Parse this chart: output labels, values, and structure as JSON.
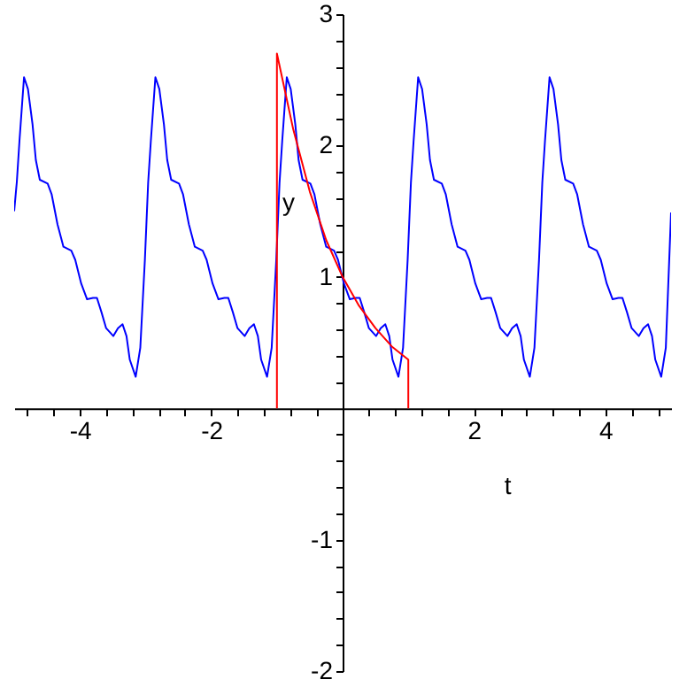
{
  "chart_data": {
    "type": "line",
    "xlabel": "t",
    "ylabel": "y",
    "x": [
      -5,
      -4.96,
      -4.92,
      -4.85,
      -4.79,
      -4.72,
      -4.67,
      -4.61,
      -4.49,
      -4.43,
      -4.34,
      -4.25,
      -4.13,
      -4.07,
      -3.98,
      -3.89,
      -3.8,
      -3.74,
      -3.67,
      -3.6,
      -3.49,
      -3.42,
      -3.35,
      -3.29,
      -3.24,
      -3.15,
      -3.08,
      -3.01,
      -2.96,
      -2.92,
      -2.85,
      -2.79,
      -2.72,
      -2.67,
      -2.61,
      -2.49,
      -2.43,
      -2.34,
      -2.25,
      -2.13,
      -2.07,
      -1.98,
      -1.89,
      -1.8,
      -1.74,
      -1.67,
      -1.6,
      -1.49,
      -1.42,
      -1.35,
      -1.29,
      -1.24,
      -1.15,
      -1.08,
      -1.01,
      -0.96,
      -0.92,
      -0.85,
      -0.79,
      -0.72,
      -0.67,
      -0.61,
      -0.49,
      -0.43,
      -0.34,
      -0.25,
      -0.13,
      -0.07,
      0.02,
      0.11,
      0.2,
      0.26,
      0.33,
      0.4,
      0.51,
      0.58,
      0.65,
      0.71,
      0.76,
      0.85,
      0.92,
      0.99,
      1.04,
      1.08,
      1.15,
      1.21,
      1.28,
      1.33,
      1.39,
      1.51,
      1.57,
      1.66,
      1.75,
      1.87,
      1.93,
      2.02,
      2.11,
      2.2,
      2.26,
      2.33,
      2.4,
      2.51,
      2.58,
      2.65,
      2.71,
      2.76,
      2.85,
      2.92,
      2.99,
      3.04,
      3.08,
      3.15,
      3.21,
      3.28,
      3.33,
      3.39,
      3.51,
      3.57,
      3.66,
      3.75,
      3.87,
      3.93,
      4.02,
      4.11,
      4.2,
      4.26,
      4.33,
      4.4,
      4.51,
      4.58,
      4.65,
      4.71,
      4.76,
      4.85,
      4.92,
      5
    ],
    "series": [
      {
        "color": "#0000ff",
        "values": [
          1.5,
          1.72,
          2.03,
          2.52,
          2.43,
          2.16,
          1.89,
          1.74,
          1.71,
          1.63,
          1.4,
          1.23,
          1.2,
          1.13,
          0.95,
          0.83,
          0.84,
          0.84,
          0.73,
          0.61,
          0.55,
          0.61,
          0.64,
          0.55,
          0.37,
          0.24,
          0.46,
          1.13,
          1.72,
          2.03,
          2.52,
          2.43,
          2.16,
          1.89,
          1.74,
          1.71,
          1.63,
          1.4,
          1.23,
          1.2,
          1.13,
          0.95,
          0.83,
          0.84,
          0.84,
          0.73,
          0.61,
          0.55,
          0.61,
          0.64,
          0.55,
          0.37,
          0.24,
          0.46,
          1.13,
          1.72,
          2.03,
          2.52,
          2.43,
          2.16,
          1.89,
          1.74,
          1.71,
          1.63,
          1.4,
          1.23,
          1.2,
          1.13,
          0.95,
          0.83,
          0.84,
          0.84,
          0.73,
          0.61,
          0.55,
          0.61,
          0.64,
          0.55,
          0.37,
          0.24,
          0.46,
          1.13,
          1.72,
          2.03,
          2.52,
          2.43,
          2.16,
          1.89,
          1.74,
          1.71,
          1.63,
          1.4,
          1.23,
          1.2,
          1.13,
          0.95,
          0.83,
          0.84,
          0.84,
          0.73,
          0.61,
          0.55,
          0.61,
          0.64,
          0.55,
          0.37,
          0.24,
          0.46,
          1.13,
          1.72,
          2.03,
          2.52,
          2.43,
          2.16,
          1.89,
          1.74,
          1.71,
          1.63,
          1.4,
          1.23,
          1.2,
          1.13,
          0.95,
          0.83,
          0.84,
          0.84,
          0.73,
          0.61,
          0.55,
          0.61,
          0.64,
          0.55,
          0.37,
          0.24,
          0.46,
          1.49
        ]
      },
      {
        "color": "#ff0000",
        "x": [
          -1,
          -1,
          -0.75,
          -0.5,
          -0.25,
          0,
          0.25,
          0.5,
          0.75,
          1,
          1
        ],
        "values": [
          0,
          2.7,
          2.12,
          1.65,
          1.28,
          1,
          0.78,
          0.61,
          0.47,
          0.37,
          0
        ]
      }
    ],
    "xlim": [
      -5,
      5
    ],
    "xticks": [
      {
        "value": -4.8,
        "label": null
      },
      {
        "value": -4.4,
        "label": null
      },
      -4,
      {
        "value": -3.6,
        "label": null
      },
      {
        "value": -3.2,
        "label": null
      },
      {
        "value": -2.8,
        "label": null
      },
      {
        "value": -2.4,
        "label": null
      },
      -2,
      {
        "value": -1.6,
        "label": null
      },
      {
        "value": -1.2,
        "label": null
      },
      {
        "value": -0.8,
        "label": null
      },
      {
        "value": -0.4,
        "label": null
      },
      {
        "value": 0.4,
        "label": null
      },
      {
        "value": 0.8,
        "label": null
      },
      {
        "value": 1.2,
        "label": null
      },
      {
        "value": 1.6,
        "label": null
      },
      2,
      {
        "value": 2.4,
        "label": null
      },
      {
        "value": 2.8,
        "label": null
      },
      {
        "value": 3.2,
        "label": null
      },
      {
        "value": 3.6,
        "label": null
      },
      4,
      {
        "value": 4.4,
        "label": null
      },
      {
        "value": 4.8,
        "label": null
      }
    ],
    "ylim": [
      -2,
      3
    ],
    "yticks": [
      -2,
      {
        "value": -1.8,
        "label": null
      },
      {
        "value": -1.6,
        "label": null
      },
      {
        "value": -1.4,
        "label": null
      },
      {
        "value": -1.2,
        "label": null
      },
      -1,
      {
        "value": -0.8,
        "label": null
      },
      {
        "value": -0.6,
        "label": null
      },
      {
        "value": -0.4,
        "label": null
      },
      {
        "value": -0.2,
        "label": null
      },
      {
        "value": 0.2,
        "label": null
      },
      {
        "value": 0.4,
        "label": null
      },
      {
        "value": 0.6,
        "label": null
      },
      {
        "value": 0.8,
        "label": null
      },
      1,
      {
        "value": 1.2,
        "label": null
      },
      {
        "value": 1.4,
        "label": null
      },
      {
        "value": 1.6,
        "label": null
      },
      {
        "value": 1.8,
        "label": null
      },
      2,
      {
        "value": 2.2,
        "label": null
      },
      {
        "value": 2.4,
        "label": null
      },
      {
        "value": 2.6,
        "label": null
      },
      {
        "value": 2.8,
        "label": null
      },
      3
    ],
    "grid": false
  }
}
